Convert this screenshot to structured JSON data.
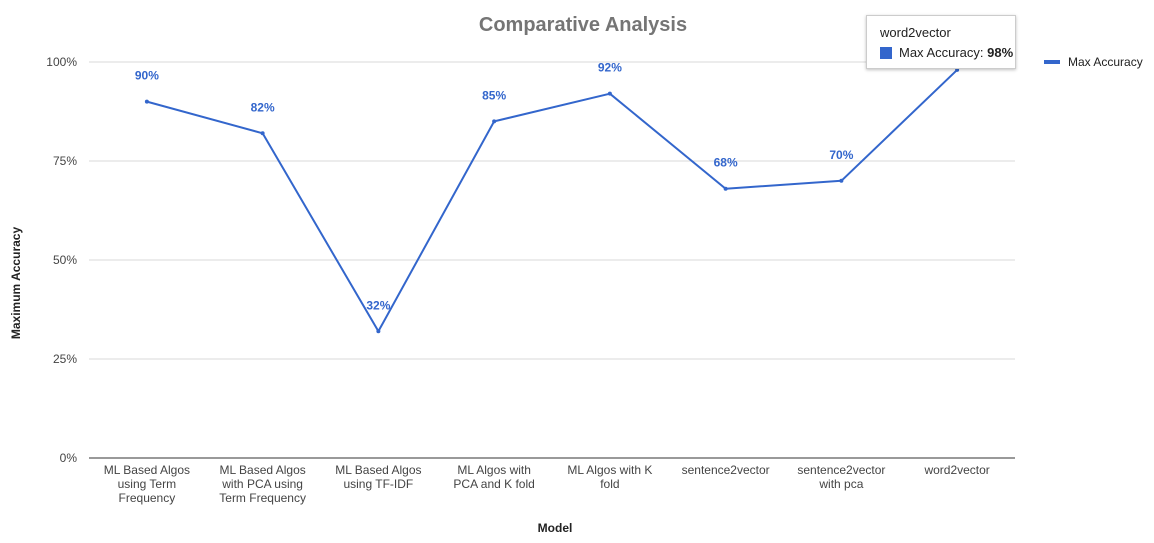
{
  "chart_data": {
    "type": "line",
    "title": "Comparative Analysis",
    "xlabel": "Model",
    "ylabel": "Maximum Accuracy",
    "ylim": [
      0,
      100
    ],
    "yticks": [
      "0%",
      "25%",
      "50%",
      "75%",
      "100%"
    ],
    "categories": [
      "ML Based Algos using Term Frequency",
      "ML Based Algos with PCA using Term Frequency",
      "ML Based Algos using TF-IDF",
      "ML Algos with PCA and K fold",
      "ML Algos with K fold",
      "sentence2vector",
      "sentence2vector with pca",
      "word2vector"
    ],
    "category_lines": [
      [
        "ML Based Algos",
        "using Term",
        "Frequency"
      ],
      [
        "ML Based Algos",
        "with PCA using",
        "Term Frequency"
      ],
      [
        "ML Based Algos",
        "using TF-IDF"
      ],
      [
        "ML Algos with",
        "PCA and K fold"
      ],
      [
        "ML Algos with K",
        "fold"
      ],
      [
        "sentence2vector"
      ],
      [
        "sentence2vector",
        "with pca"
      ],
      [
        "word2vector"
      ]
    ],
    "series": [
      {
        "name": "Max Accuracy",
        "values": [
          90,
          82,
          32,
          85,
          92,
          68,
          70,
          98
        ],
        "labels": [
          "90%",
          "82%",
          "32%",
          "85%",
          "92%",
          "68%",
          "70%",
          "98%"
        ],
        "color": "#3366cc"
      }
    ],
    "legend": {
      "position": "right",
      "label": "Max Accuracy"
    },
    "grid": true,
    "tooltip": {
      "title": "word2vector",
      "series_label": "Max Accuracy",
      "separator": ": ",
      "value": "98%"
    }
  }
}
